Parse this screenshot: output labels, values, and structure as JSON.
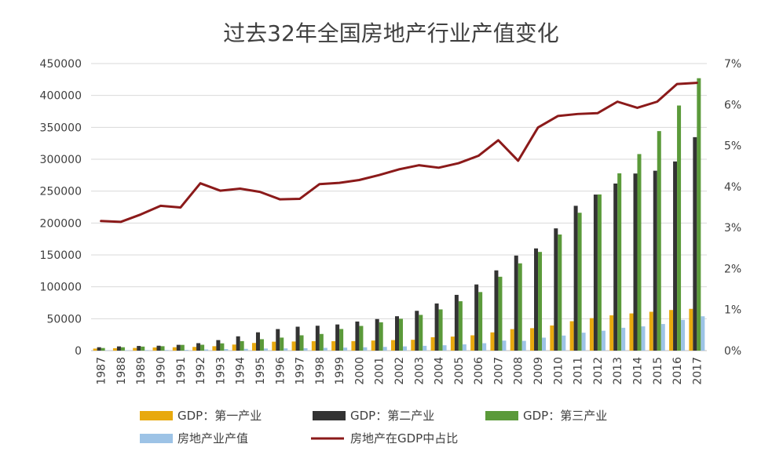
{
  "chart_data": {
    "type": "bar",
    "title": "过去32年全国房地产行业产值变化",
    "categories": [
      "1987",
      "1988",
      "1989",
      "1990",
      "1991",
      "1992",
      "1993",
      "1994",
      "1995",
      "1996",
      "1997",
      "1998",
      "1999",
      "2000",
      "2001",
      "2002",
      "2003",
      "2004",
      "2005",
      "2006",
      "2007",
      "2008",
      "2009",
      "2010",
      "2011",
      "2012",
      "2013",
      "2014",
      "2015",
      "2016",
      "2017"
    ],
    "series": [
      {
        "name": "GDP：第一产业",
        "type": "bar",
        "axis": "left",
        "color": "#E8A90E",
        "values": [
          3200,
          3800,
          4200,
          5000,
          5300,
          5800,
          6900,
          9500,
          12000,
          14000,
          14300,
          14800,
          14800,
          14900,
          15800,
          16500,
          17000,
          21000,
          22000,
          24000,
          28600,
          33700,
          35200,
          39400,
          46100,
          50900,
          55300,
          58300,
          60900,
          63700,
          65500
        ]
      },
      {
        "name": "GDP：第二产业",
        "type": "bar",
        "axis": "left",
        "color": "#333333",
        "values": [
          5300,
          6600,
          7300,
          7700,
          9100,
          11700,
          16500,
          22400,
          28700,
          33800,
          37500,
          39000,
          41000,
          45600,
          49500,
          53900,
          62400,
          73900,
          87400,
          103700,
          125800,
          149000,
          160200,
          191600,
          227000,
          244600,
          261900,
          277600,
          282000,
          296500,
          334600
        ]
      },
      {
        "name": "GDP：第三产业",
        "type": "bar",
        "axis": "left",
        "color": "#5B9A3A",
        "values": [
          4100,
          5300,
          6300,
          6900,
          9000,
          9200,
          11400,
          14900,
          17900,
          20400,
          24000,
          26100,
          33900,
          38700,
          44400,
          49900,
          56000,
          64600,
          77400,
          91800,
          115800,
          136800,
          154700,
          182000,
          216100,
          244800,
          277900,
          308100,
          344100,
          384200,
          427000
        ]
      },
      {
        "name": "房地产业产值",
        "type": "bar",
        "axis": "left",
        "color": "#9DC3E6",
        "values": [
          400,
          600,
          800,
          900,
          1100,
          1800,
          2400,
          2800,
          3300,
          3500,
          3800,
          4300,
          4700,
          5200,
          5800,
          6600,
          7500,
          8400,
          9800,
          11600,
          15700,
          15300,
          20300,
          23600,
          28100,
          31200,
          35800,
          38000,
          41700,
          48200,
          53800
        ]
      },
      {
        "name": "房地产在GDP中占比",
        "type": "line",
        "axis": "right",
        "color": "#8B1A1A",
        "values": [
          3.16,
          3.14,
          3.32,
          3.53,
          3.49,
          4.08,
          3.9,
          3.95,
          3.87,
          3.69,
          3.7,
          4.06,
          4.09,
          4.16,
          4.28,
          4.42,
          4.52,
          4.46,
          4.57,
          4.75,
          5.13,
          4.63,
          5.44,
          5.72,
          5.77,
          5.79,
          6.07,
          5.92,
          6.07,
          6.5,
          6.53
        ]
      }
    ],
    "y_left": {
      "min": 0,
      "max": 450000,
      "ticks": [
        "0",
        "50000",
        "100000",
        "150000",
        "200000",
        "250000",
        "300000",
        "350000",
        "400000",
        "450000"
      ]
    },
    "y_right": {
      "min": 0,
      "max": 7,
      "ticks": [
        "0%",
        "1%",
        "2%",
        "3%",
        "4%",
        "5%",
        "6%",
        "7%"
      ]
    },
    "grid": "horizontal",
    "legend_position": "bottom"
  }
}
